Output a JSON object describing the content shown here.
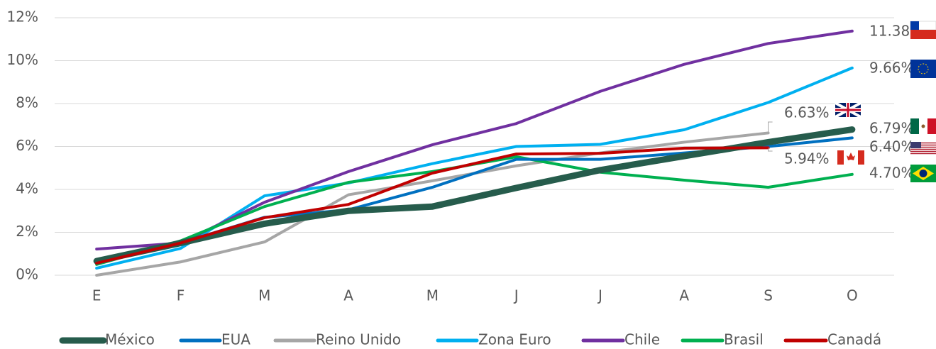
{
  "chart_data": {
    "type": "line",
    "categories": [
      "E",
      "F",
      "M",
      "A",
      "M",
      "J",
      "J",
      "A",
      "S",
      "O"
    ],
    "ylim": [
      0,
      12
    ],
    "yticks": [
      {
        "value": 0,
        "label": "0%"
      },
      {
        "value": 2,
        "label": "2%"
      },
      {
        "value": 4,
        "label": "4%"
      },
      {
        "value": 6,
        "label": "6%"
      },
      {
        "value": 8,
        "label": "8%"
      },
      {
        "value": 10,
        "label": "10%"
      },
      {
        "value": 12,
        "label": "12%"
      }
    ],
    "grid": true,
    "legend": "bottom",
    "series": [
      {
        "name": "México",
        "color": "#265c4c",
        "values": [
          0.66,
          1.5,
          2.4,
          3.0,
          3.2,
          4.07,
          4.9,
          5.55,
          6.2,
          6.79
        ],
        "value_labels": [
          null,
          null,
          null,
          null,
          null,
          null,
          null,
          null,
          null,
          "6.79%"
        ]
      },
      {
        "name": "EUA",
        "color": "#0070c0",
        "values": [
          0.56,
          1.5,
          2.7,
          3.05,
          4.1,
          5.4,
          5.4,
          5.7,
          6.0,
          6.4
        ],
        "value_labels": [
          null,
          null,
          null,
          null,
          null,
          null,
          null,
          null,
          null,
          "6.40%"
        ]
      },
      {
        "name": "Reino Unido",
        "color": "#a6a6a6",
        "values": [
          0,
          0.62,
          1.55,
          3.75,
          4.4,
          5.1,
          5.7,
          6.2,
          6.63,
          null
        ],
        "value_labels": [
          null,
          null,
          null,
          null,
          null,
          null,
          null,
          null,
          "6.63%",
          null
        ]
      },
      {
        "name": "Zona Euro",
        "color": "#00b0f0",
        "values": [
          0.33,
          1.25,
          3.7,
          4.3,
          5.2,
          6.0,
          6.1,
          6.78,
          8.05,
          9.66
        ],
        "value_labels": [
          null,
          null,
          null,
          null,
          null,
          null,
          null,
          null,
          null,
          "9.66%"
        ]
      },
      {
        "name": "Chile",
        "color": "#7030a0",
        "values": [
          1.22,
          1.5,
          3.4,
          4.83,
          6.08,
          7.07,
          8.57,
          9.83,
          10.8,
          11.38
        ],
        "value_labels": [
          null,
          null,
          null,
          null,
          null,
          null,
          null,
          null,
          null,
          "11.38%"
        ]
      },
      {
        "name": "Brasil",
        "color": "#00b050",
        "values": [
          0.5,
          1.6,
          3.2,
          4.33,
          4.83,
          5.52,
          4.8,
          4.43,
          4.1,
          4.7
        ],
        "value_labels": [
          null,
          null,
          null,
          null,
          null,
          null,
          null,
          null,
          null,
          "4.70%"
        ]
      },
      {
        "name": "Canadá",
        "color": "#c00000",
        "values": [
          0.56,
          1.5,
          2.68,
          3.3,
          4.76,
          5.65,
          5.68,
          5.92,
          5.94,
          null
        ],
        "value_labels": [
          null,
          null,
          null,
          null,
          null,
          null,
          null,
          null,
          "5.94%",
          null
        ]
      }
    ]
  }
}
